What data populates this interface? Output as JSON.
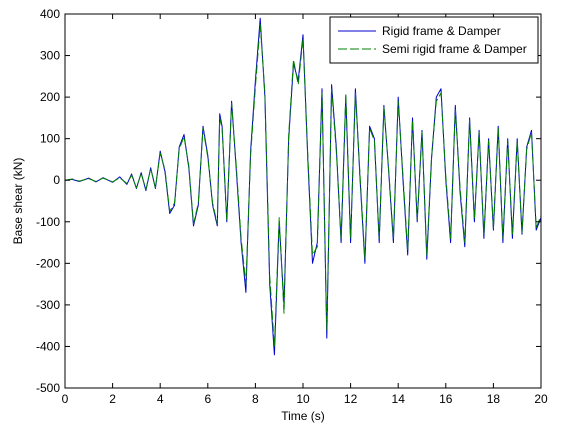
{
  "chart_data": {
    "type": "line",
    "title": "",
    "xlabel": "Time (s)",
    "ylabel": "Base shear (kN)",
    "xlim": [
      0,
      20
    ],
    "ylim": [
      -500,
      400
    ],
    "xticks": [
      0,
      2,
      4,
      6,
      8,
      10,
      12,
      14,
      16,
      18,
      20
    ],
    "yticks": [
      -500,
      -400,
      -300,
      -200,
      -100,
      0,
      100,
      200,
      300,
      400
    ],
    "grid": false,
    "legend_position": "top-right",
    "series": [
      {
        "name": "Rigid frame & Damper",
        "color": "#0000cc",
        "style": "solid",
        "x": [
          0,
          0.3,
          0.6,
          1.0,
          1.3,
          1.6,
          2.0,
          2.3,
          2.6,
          2.8,
          3.0,
          3.2,
          3.4,
          3.6,
          3.8,
          4.0,
          4.2,
          4.4,
          4.6,
          4.8,
          5.0,
          5.2,
          5.4,
          5.6,
          5.8,
          6.0,
          6.2,
          6.4,
          6.5,
          6.6,
          6.8,
          7.0,
          7.2,
          7.4,
          7.6,
          7.8,
          8.0,
          8.2,
          8.4,
          8.6,
          8.8,
          9.0,
          9.2,
          9.4,
          9.6,
          9.8,
          10.0,
          10.2,
          10.4,
          10.6,
          10.8,
          11.0,
          11.2,
          11.4,
          11.6,
          11.8,
          12.0,
          12.2,
          12.4,
          12.6,
          12.8,
          13.0,
          13.2,
          13.4,
          13.6,
          13.8,
          14.0,
          14.2,
          14.4,
          14.6,
          14.8,
          15.0,
          15.2,
          15.4,
          15.6,
          15.8,
          16.0,
          16.2,
          16.4,
          16.6,
          16.8,
          17.0,
          17.2,
          17.4,
          17.6,
          17.8,
          18.0,
          18.2,
          18.4,
          18.6,
          18.8,
          19.0,
          19.2,
          19.4,
          19.6,
          19.8,
          20.0
        ],
        "y": [
          0,
          2,
          -3,
          5,
          -4,
          6,
          -5,
          8,
          -10,
          15,
          -20,
          18,
          -25,
          30,
          -20,
          70,
          20,
          -80,
          -60,
          80,
          110,
          30,
          -110,
          -60,
          130,
          60,
          -60,
          -110,
          160,
          130,
          -100,
          190,
          20,
          -150,
          -270,
          70,
          240,
          390,
          200,
          -250,
          -420,
          -100,
          -300,
          100,
          280,
          240,
          350,
          50,
          -200,
          -150,
          220,
          -380,
          230,
          80,
          -150,
          200,
          -150,
          220,
          0,
          -200,
          130,
          100,
          -150,
          180,
          20,
          -150,
          200,
          0,
          -180,
          150,
          -100,
          120,
          -190,
          50,
          200,
          220,
          0,
          -150,
          180,
          -30,
          -160,
          150,
          -100,
          120,
          -140,
          100,
          -120,
          130,
          -150,
          100,
          -140,
          100,
          -130,
          80,
          120,
          -120,
          -90
        ]
      },
      {
        "name": "Semi rigid frame & Damper",
        "color": "#008000",
        "style": "dashed",
        "x": [
          0,
          0.3,
          0.6,
          1.0,
          1.3,
          1.6,
          2.0,
          2.3,
          2.6,
          2.8,
          3.0,
          3.2,
          3.4,
          3.6,
          3.8,
          4.0,
          4.2,
          4.4,
          4.6,
          4.8,
          5.0,
          5.2,
          5.4,
          5.6,
          5.8,
          6.0,
          6.2,
          6.4,
          6.5,
          6.6,
          6.8,
          7.0,
          7.2,
          7.4,
          7.6,
          7.8,
          8.0,
          8.2,
          8.4,
          8.6,
          8.8,
          9.0,
          9.2,
          9.4,
          9.6,
          9.8,
          10.0,
          10.2,
          10.4,
          10.6,
          10.8,
          11.0,
          11.2,
          11.4,
          11.6,
          11.8,
          12.0,
          12.2,
          12.4,
          12.6,
          12.8,
          13.0,
          13.2,
          13.4,
          13.6,
          13.8,
          14.0,
          14.2,
          14.4,
          14.6,
          14.8,
          15.0,
          15.2,
          15.4,
          15.6,
          15.8,
          16.0,
          16.2,
          16.4,
          16.6,
          16.8,
          17.0,
          17.2,
          17.4,
          17.6,
          17.8,
          18.0,
          18.2,
          18.4,
          18.6,
          18.8,
          19.0,
          19.2,
          19.4,
          19.6,
          19.8,
          20.0
        ],
        "y": [
          0,
          3,
          -2,
          4,
          -3,
          5,
          -4,
          6,
          -8,
          12,
          -18,
          16,
          -22,
          28,
          -18,
          65,
          25,
          -75,
          -55,
          75,
          105,
          35,
          -105,
          -55,
          125,
          55,
          -55,
          -105,
          150,
          125,
          -95,
          185,
          30,
          -140,
          -250,
          60,
          225,
          375,
          210,
          -230,
          -400,
          -90,
          -320,
          110,
          290,
          230,
          340,
          60,
          -180,
          -160,
          210,
          -360,
          220,
          70,
          -140,
          210,
          -140,
          210,
          10,
          -190,
          125,
          95,
          -140,
          175,
          25,
          -140,
          190,
          10,
          -170,
          145,
          -95,
          115,
          -180,
          55,
          190,
          210,
          10,
          -140,
          170,
          -20,
          -150,
          145,
          -95,
          115,
          -130,
          95,
          -115,
          125,
          -140,
          95,
          -130,
          95,
          -125,
          75,
          115,
          -115,
          -85
        ]
      }
    ]
  }
}
